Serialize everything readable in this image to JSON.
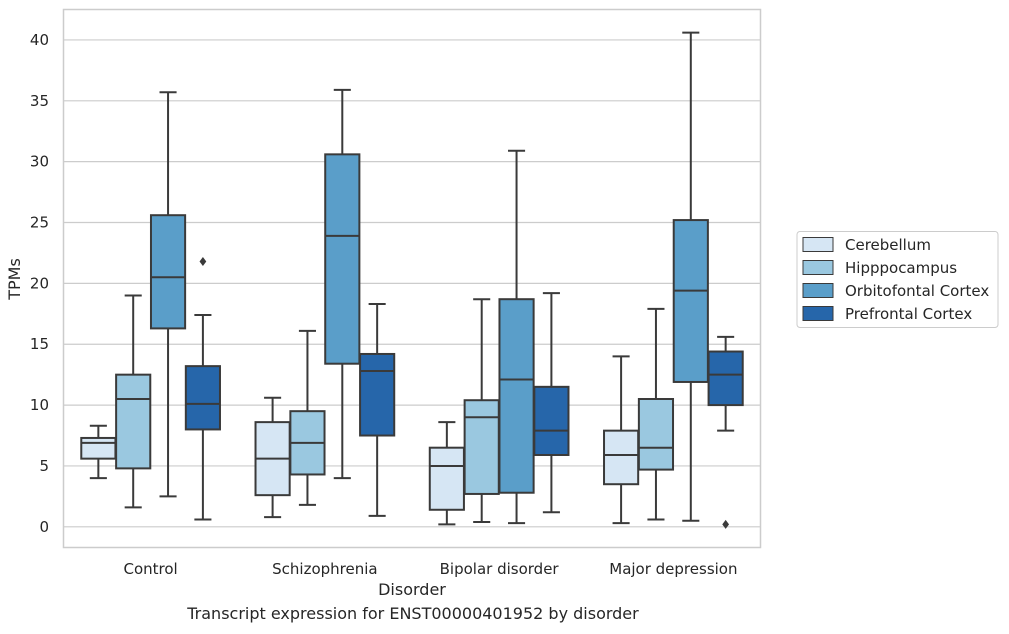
{
  "caption": "Transcript expression for ENST00000401952 by disorder",
  "colors": {
    "Cerebellum": "#d6e6f4",
    "Hipppocampus": "#9ac8e0",
    "Orbitofontal Cortex": "#5a9ec9",
    "Prefrontal Cortex": "#2666aa",
    "line": "#3a3a3a",
    "grid": "#cccccc",
    "frame": "#cccccc",
    "text": "#262626"
  },
  "chart_data": {
    "type": "box",
    "title": "",
    "xlabel": "Disorder",
    "ylabel": "TPMs",
    "ylim": [
      -1.7,
      42.5
    ],
    "yticks": [
      0,
      5,
      10,
      15,
      20,
      25,
      30,
      35,
      40
    ],
    "grid": "horizontal",
    "legend_position": "right",
    "categories": [
      "Control",
      "Schizophrenia",
      "Bipolar disorder",
      "Major depression"
    ],
    "series": [
      {
        "name": "Cerebellum",
        "boxes": [
          {
            "whislo": 4.0,
            "q1": 5.6,
            "med": 6.9,
            "q3": 7.3,
            "whishi": 8.3,
            "fliers": []
          },
          {
            "whislo": 0.8,
            "q1": 2.6,
            "med": 5.6,
            "q3": 8.6,
            "whishi": 10.6,
            "fliers": []
          },
          {
            "whislo": 0.2,
            "q1": 1.4,
            "med": 5.0,
            "q3": 6.5,
            "whishi": 8.6,
            "fliers": []
          },
          {
            "whislo": 0.3,
            "q1": 3.5,
            "med": 5.9,
            "q3": 7.9,
            "whishi": 14.0,
            "fliers": []
          }
        ]
      },
      {
        "name": "Hipppocampus",
        "boxes": [
          {
            "whislo": 1.6,
            "q1": 4.8,
            "med": 10.5,
            "q3": 12.5,
            "whishi": 19.0,
            "fliers": []
          },
          {
            "whislo": 1.8,
            "q1": 4.3,
            "med": 6.9,
            "q3": 9.5,
            "whishi": 16.1,
            "fliers": []
          },
          {
            "whislo": 0.4,
            "q1": 2.7,
            "med": 9.0,
            "q3": 10.4,
            "whishi": 18.7,
            "fliers": []
          },
          {
            "whislo": 0.6,
            "q1": 4.7,
            "med": 6.5,
            "q3": 10.5,
            "whishi": 17.9,
            "fliers": []
          }
        ]
      },
      {
        "name": "Orbitofontal Cortex",
        "boxes": [
          {
            "whislo": 2.5,
            "q1": 16.3,
            "med": 20.5,
            "q3": 25.6,
            "whishi": 35.7,
            "fliers": []
          },
          {
            "whislo": 4.0,
            "q1": 13.4,
            "med": 23.9,
            "q3": 30.6,
            "whishi": 35.9,
            "fliers": []
          },
          {
            "whislo": 0.3,
            "q1": 2.8,
            "med": 12.1,
            "q3": 18.7,
            "whishi": 30.9,
            "fliers": []
          },
          {
            "whislo": 0.5,
            "q1": 11.9,
            "med": 19.4,
            "q3": 25.2,
            "whishi": 40.6,
            "fliers": []
          }
        ]
      },
      {
        "name": "Prefrontal Cortex",
        "boxes": [
          {
            "whislo": 0.6,
            "q1": 8.0,
            "med": 10.1,
            "q3": 13.2,
            "whishi": 17.4,
            "fliers": [
              21.8
            ]
          },
          {
            "whislo": 0.9,
            "q1": 7.5,
            "med": 12.8,
            "q3": 14.2,
            "whishi": 18.3,
            "fliers": []
          },
          {
            "whislo": 1.2,
            "q1": 5.9,
            "med": 7.9,
            "q3": 11.5,
            "whishi": 19.2,
            "fliers": []
          },
          {
            "whislo": 7.9,
            "q1": 10.0,
            "med": 12.5,
            "q3": 14.4,
            "whishi": 15.6,
            "fliers": [
              0.2
            ]
          }
        ]
      }
    ]
  }
}
